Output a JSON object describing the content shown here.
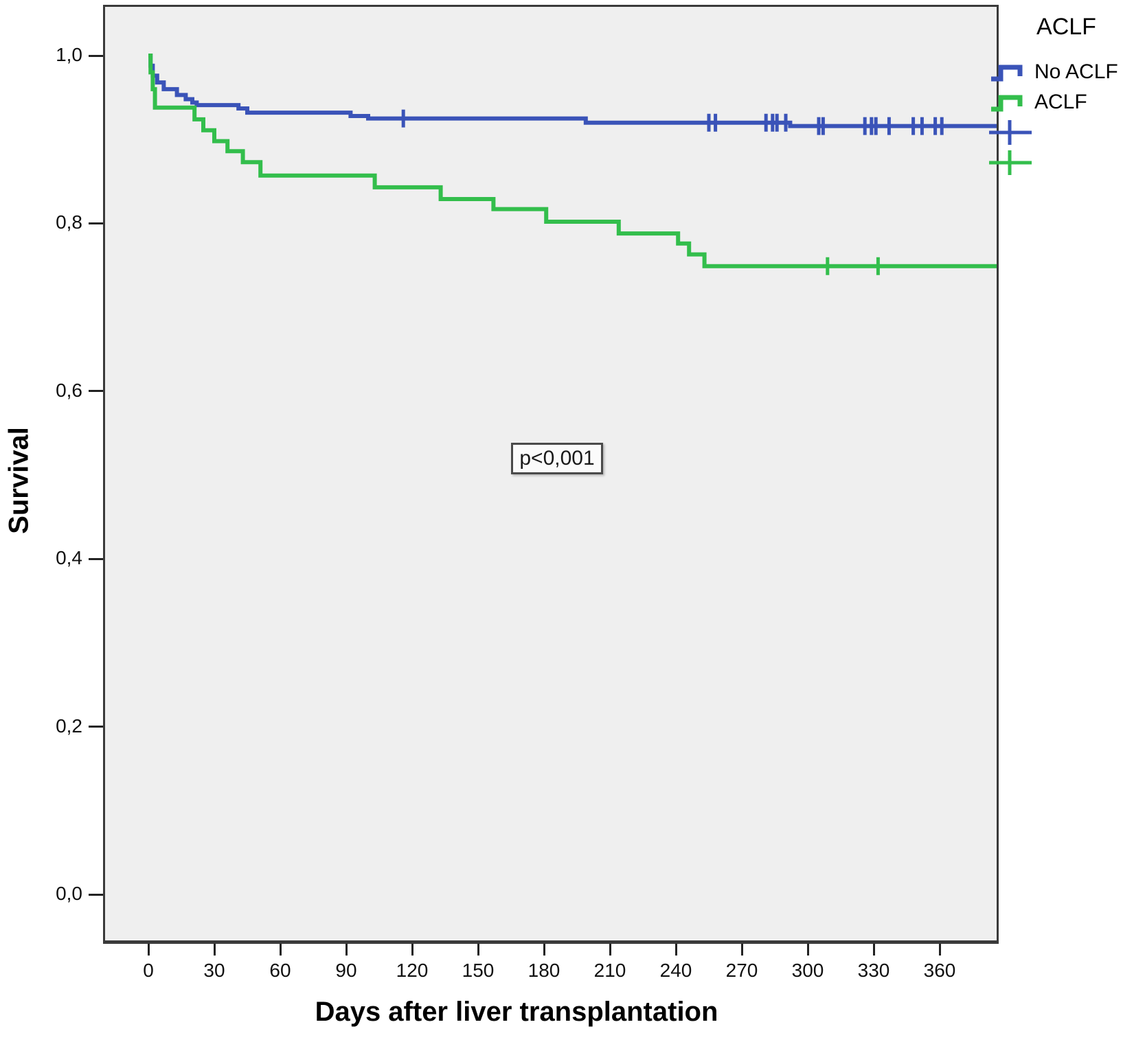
{
  "figure": {
    "kind": "kaplan-meier-survival-plot",
    "background_color": "#ffffff",
    "plot_background_color": "#efefef"
  },
  "legend": {
    "title": "ACLF",
    "items": [
      {
        "label": "No ACLF",
        "color": "#3A53B8",
        "glyph": "step-line"
      },
      {
        "label": "ACLF",
        "color": "#33BE4C",
        "glyph": "step-line"
      },
      {
        "label": "",
        "color": "#3A53B8",
        "glyph": "censor-plus"
      },
      {
        "label": "",
        "color": "#33BE4C",
        "glyph": "censor-plus"
      }
    ]
  },
  "chart_data": {
    "type": "line",
    "subtype": "kaplan-meier-step",
    "title": "",
    "xlabel": "Days after liver transplantation",
    "ylabel": "Survival",
    "xlim": [
      -20,
      386
    ],
    "ylim": [
      0.0,
      1.05
    ],
    "grid": false,
    "legend_position": "right-top-outside",
    "annotation": {
      "text": "p<0,001",
      "x_day": 185,
      "y_survival": 0.52
    },
    "x_ticks": [
      0,
      30,
      60,
      90,
      120,
      150,
      180,
      210,
      240,
      270,
      300,
      330,
      360
    ],
    "y_ticks": [
      {
        "label": "1,0",
        "value": 1.0
      },
      {
        "label": "0,8",
        "value": 0.8
      },
      {
        "label": "0,6",
        "value": 0.6
      },
      {
        "label": "0,4",
        "value": 0.4
      },
      {
        "label": "0,2",
        "value": 0.2
      },
      {
        "label": "0,0",
        "value": 0.0
      }
    ],
    "series": [
      {
        "name": "No ACLF",
        "color": "#3A53B8",
        "points_day_survival": [
          [
            0,
            1.0
          ],
          [
            1,
            0.988
          ],
          [
            2,
            0.976
          ],
          [
            4,
            0.968
          ],
          [
            7,
            0.96
          ],
          [
            13,
            0.953
          ],
          [
            17,
            0.948
          ],
          [
            20,
            0.944
          ],
          [
            22,
            0.941
          ],
          [
            41,
            0.937
          ],
          [
            45,
            0.932
          ],
          [
            92,
            0.928
          ],
          [
            100,
            0.925
          ],
          [
            199,
            0.92
          ],
          [
            292,
            0.916
          ],
          [
            386,
            0.916
          ]
        ],
        "censor_marks_day_survival": [
          [
            116,
            0.925
          ],
          [
            255,
            0.92
          ],
          [
            258,
            0.92
          ],
          [
            281,
            0.92
          ],
          [
            284,
            0.92
          ],
          [
            286,
            0.92
          ],
          [
            290,
            0.92
          ],
          [
            305,
            0.916
          ],
          [
            307,
            0.916
          ],
          [
            326,
            0.916
          ],
          [
            329,
            0.916
          ],
          [
            331,
            0.916
          ],
          [
            337,
            0.916
          ],
          [
            348,
            0.916
          ],
          [
            352,
            0.916
          ],
          [
            358,
            0.916
          ],
          [
            361,
            0.916
          ]
        ]
      },
      {
        "name": "ACLF",
        "color": "#33BE4C",
        "points_day_survival": [
          [
            0,
            1.0
          ],
          [
            1,
            0.98
          ],
          [
            2,
            0.96
          ],
          [
            3,
            0.938
          ],
          [
            21,
            0.924
          ],
          [
            25,
            0.911
          ],
          [
            30,
            0.898
          ],
          [
            36,
            0.886
          ],
          [
            43,
            0.873
          ],
          [
            51,
            0.857
          ],
          [
            103,
            0.843
          ],
          [
            133,
            0.829
          ],
          [
            157,
            0.817
          ],
          [
            181,
            0.802
          ],
          [
            214,
            0.788
          ],
          [
            241,
            0.776
          ],
          [
            246,
            0.763
          ],
          [
            253,
            0.749
          ],
          [
            386,
            0.749
          ]
        ],
        "censor_marks_day_survival": [
          [
            309,
            0.749
          ],
          [
            332,
            0.749
          ]
        ]
      }
    ]
  }
}
